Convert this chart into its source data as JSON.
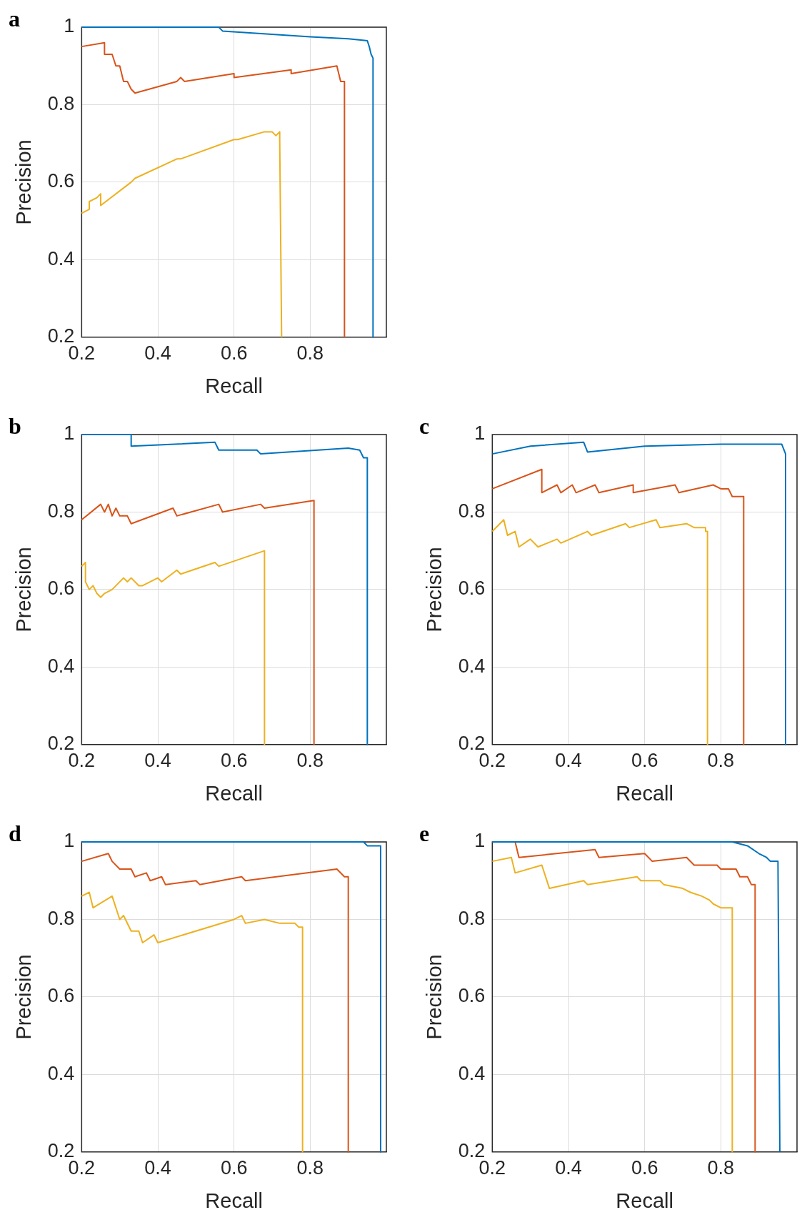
{
  "chart_data": [
    {
      "type": "line",
      "title": "a",
      "xlabel": "Recall",
      "ylabel": "Precision",
      "xlim": [
        0.2,
        1
      ],
      "ylim": [
        0.2,
        1
      ],
      "xticks": [
        0.2,
        0.4,
        0.6,
        0.8
      ],
      "yticks": [
        0.2,
        0.4,
        0.6,
        0.8,
        1
      ],
      "grid": true,
      "legend": false,
      "series": [
        {
          "color": "#0072bd",
          "x": [
            0.2,
            0.56,
            0.57,
            0.8,
            0.9,
            0.95,
            0.955,
            0.96,
            0.965,
            0.965
          ],
          "values": [
            1,
            1,
            0.99,
            0.975,
            0.97,
            0.965,
            0.95,
            0.93,
            0.92,
            0.2
          ]
        },
        {
          "color": "#d95319",
          "x": [
            0.2,
            0.26,
            0.26,
            0.28,
            0.29,
            0.3,
            0.31,
            0.32,
            0.33,
            0.34,
            0.45,
            0.46,
            0.47,
            0.6,
            0.6,
            0.75,
            0.75,
            0.87,
            0.88,
            0.89,
            0.89
          ],
          "values": [
            0.95,
            0.96,
            0.93,
            0.93,
            0.9,
            0.9,
            0.86,
            0.86,
            0.84,
            0.83,
            0.86,
            0.87,
            0.86,
            0.88,
            0.87,
            0.89,
            0.88,
            0.9,
            0.86,
            0.86,
            0.2
          ]
        },
        {
          "color": "#edb120",
          "x": [
            0.2,
            0.22,
            0.22,
            0.24,
            0.25,
            0.25,
            0.33,
            0.34,
            0.45,
            0.46,
            0.6,
            0.61,
            0.68,
            0.7,
            0.71,
            0.72,
            0.72,
            0.725
          ],
          "values": [
            0.52,
            0.53,
            0.55,
            0.56,
            0.57,
            0.54,
            0.6,
            0.61,
            0.66,
            0.66,
            0.71,
            0.71,
            0.73,
            0.73,
            0.72,
            0.73,
            0.71,
            0.2
          ]
        }
      ]
    },
    {
      "type": "line",
      "title": "b",
      "xlabel": "Recall",
      "ylabel": "Precision",
      "xlim": [
        0.2,
        1
      ],
      "ylim": [
        0.2,
        1
      ],
      "xticks": [
        0.2,
        0.4,
        0.6,
        0.8
      ],
      "yticks": [
        0.2,
        0.4,
        0.6,
        0.8,
        1
      ],
      "grid": true,
      "legend": false,
      "series": [
        {
          "color": "#0072bd",
          "x": [
            0.2,
            0.33,
            0.33,
            0.55,
            0.56,
            0.66,
            0.67,
            0.9,
            0.93,
            0.94,
            0.95,
            0.95
          ],
          "values": [
            1,
            1,
            0.97,
            0.98,
            0.96,
            0.96,
            0.95,
            0.965,
            0.96,
            0.94,
            0.94,
            0.2
          ]
        },
        {
          "color": "#d95319",
          "x": [
            0.2,
            0.25,
            0.26,
            0.27,
            0.28,
            0.29,
            0.3,
            0.32,
            0.33,
            0.44,
            0.45,
            0.56,
            0.57,
            0.67,
            0.68,
            0.81,
            0.81
          ],
          "values": [
            0.78,
            0.82,
            0.8,
            0.82,
            0.79,
            0.81,
            0.79,
            0.79,
            0.77,
            0.81,
            0.79,
            0.82,
            0.8,
            0.82,
            0.81,
            0.83,
            0.2
          ]
        },
        {
          "color": "#edb120",
          "x": [
            0.2,
            0.21,
            0.21,
            0.22,
            0.23,
            0.24,
            0.25,
            0.26,
            0.28,
            0.31,
            0.32,
            0.33,
            0.35,
            0.36,
            0.4,
            0.41,
            0.45,
            0.46,
            0.55,
            0.56,
            0.68,
            0.68
          ],
          "values": [
            0.66,
            0.67,
            0.62,
            0.6,
            0.61,
            0.59,
            0.58,
            0.59,
            0.6,
            0.63,
            0.62,
            0.63,
            0.61,
            0.61,
            0.63,
            0.62,
            0.65,
            0.64,
            0.67,
            0.66,
            0.7,
            0.2
          ]
        }
      ]
    },
    {
      "type": "line",
      "title": "c",
      "xlabel": "Recall",
      "ylabel": "Precision",
      "xlim": [
        0.2,
        1
      ],
      "ylim": [
        0.2,
        1
      ],
      "xticks": [
        0.2,
        0.4,
        0.6,
        0.8
      ],
      "yticks": [
        0.2,
        0.4,
        0.6,
        0.8,
        1
      ],
      "grid": true,
      "legend": false,
      "series": [
        {
          "color": "#0072bd",
          "x": [
            0.2,
            0.3,
            0.44,
            0.45,
            0.6,
            0.8,
            0.96,
            0.97,
            0.97
          ],
          "values": [
            0.95,
            0.97,
            0.98,
            0.955,
            0.97,
            0.975,
            0.975,
            0.95,
            0.2
          ]
        },
        {
          "color": "#d95319",
          "x": [
            0.2,
            0.33,
            0.33,
            0.37,
            0.38,
            0.41,
            0.42,
            0.47,
            0.48,
            0.57,
            0.57,
            0.68,
            0.69,
            0.78,
            0.8,
            0.82,
            0.83,
            0.86,
            0.86
          ],
          "values": [
            0.86,
            0.91,
            0.85,
            0.87,
            0.85,
            0.87,
            0.85,
            0.87,
            0.85,
            0.87,
            0.85,
            0.87,
            0.85,
            0.87,
            0.86,
            0.86,
            0.84,
            0.84,
            0.2
          ]
        },
        {
          "color": "#edb120",
          "x": [
            0.2,
            0.23,
            0.24,
            0.26,
            0.27,
            0.3,
            0.32,
            0.37,
            0.38,
            0.45,
            0.46,
            0.55,
            0.56,
            0.63,
            0.64,
            0.71,
            0.73,
            0.76,
            0.76,
            0.765,
            0.765
          ],
          "values": [
            0.75,
            0.78,
            0.74,
            0.75,
            0.71,
            0.73,
            0.71,
            0.73,
            0.72,
            0.75,
            0.74,
            0.77,
            0.76,
            0.78,
            0.76,
            0.77,
            0.76,
            0.76,
            0.75,
            0.75,
            0.2
          ]
        }
      ]
    },
    {
      "type": "line",
      "title": "d",
      "xlabel": "Recall",
      "ylabel": "Precision",
      "xlim": [
        0.2,
        1
      ],
      "ylim": [
        0.2,
        1
      ],
      "xticks": [
        0.2,
        0.4,
        0.6,
        0.8
      ],
      "yticks": [
        0.2,
        0.4,
        0.6,
        0.8,
        1
      ],
      "grid": true,
      "legend": false,
      "series": [
        {
          "color": "#0072bd",
          "x": [
            0.2,
            0.94,
            0.95,
            0.985,
            0.985
          ],
          "values": [
            1,
            1,
            0.99,
            0.99,
            0.2
          ]
        },
        {
          "color": "#d95319",
          "x": [
            0.2,
            0.27,
            0.28,
            0.3,
            0.33,
            0.34,
            0.37,
            0.38,
            0.41,
            0.42,
            0.5,
            0.51,
            0.62,
            0.63,
            0.87,
            0.89,
            0.9,
            0.9
          ],
          "values": [
            0.95,
            0.97,
            0.95,
            0.93,
            0.93,
            0.91,
            0.92,
            0.9,
            0.91,
            0.89,
            0.9,
            0.89,
            0.91,
            0.9,
            0.93,
            0.91,
            0.91,
            0.2
          ]
        },
        {
          "color": "#edb120",
          "x": [
            0.2,
            0.22,
            0.23,
            0.28,
            0.3,
            0.31,
            0.33,
            0.35,
            0.36,
            0.39,
            0.4,
            0.6,
            0.62,
            0.63,
            0.68,
            0.72,
            0.76,
            0.77,
            0.78,
            0.78
          ],
          "values": [
            0.86,
            0.87,
            0.83,
            0.86,
            0.8,
            0.81,
            0.77,
            0.77,
            0.74,
            0.76,
            0.74,
            0.8,
            0.81,
            0.79,
            0.8,
            0.79,
            0.79,
            0.78,
            0.78,
            0.2
          ]
        }
      ]
    },
    {
      "type": "line",
      "title": "e",
      "xlabel": "Recall",
      "ylabel": "Precision",
      "xlim": [
        0.2,
        1
      ],
      "ylim": [
        0.2,
        1
      ],
      "xticks": [
        0.2,
        0.4,
        0.6,
        0.8
      ],
      "yticks": [
        0.2,
        0.4,
        0.6,
        0.8,
        1
      ],
      "grid": true,
      "legend": false,
      "series": [
        {
          "color": "#0072bd",
          "x": [
            0.2,
            0.83,
            0.87,
            0.9,
            0.92,
            0.93,
            0.95,
            0.955
          ],
          "values": [
            1,
            1,
            0.99,
            0.97,
            0.96,
            0.95,
            0.95,
            0.2
          ]
        },
        {
          "color": "#d95319",
          "x": [
            0.2,
            0.26,
            0.27,
            0.47,
            0.48,
            0.6,
            0.62,
            0.71,
            0.73,
            0.79,
            0.8,
            0.84,
            0.85,
            0.87,
            0.88,
            0.89,
            0.89
          ],
          "values": [
            1,
            1,
            0.96,
            0.98,
            0.96,
            0.97,
            0.95,
            0.96,
            0.94,
            0.94,
            0.93,
            0.93,
            0.91,
            0.91,
            0.89,
            0.89,
            0.2
          ]
        },
        {
          "color": "#edb120",
          "x": [
            0.2,
            0.25,
            0.26,
            0.33,
            0.35,
            0.44,
            0.45,
            0.58,
            0.59,
            0.64,
            0.65,
            0.7,
            0.72,
            0.75,
            0.77,
            0.78,
            0.8,
            0.83,
            0.83
          ],
          "values": [
            0.95,
            0.96,
            0.92,
            0.94,
            0.88,
            0.9,
            0.89,
            0.91,
            0.9,
            0.9,
            0.89,
            0.88,
            0.87,
            0.86,
            0.85,
            0.84,
            0.83,
            0.83,
            0.2
          ]
        }
      ]
    }
  ]
}
